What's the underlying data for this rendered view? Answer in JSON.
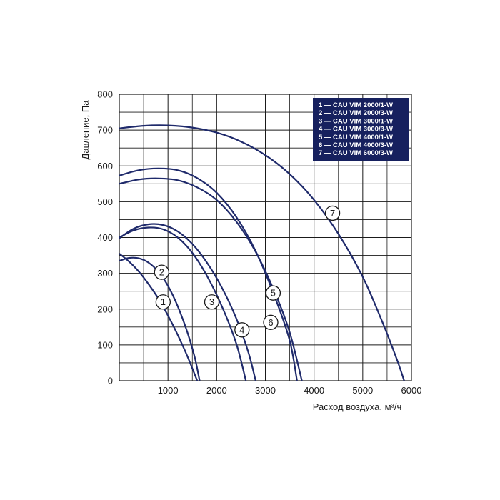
{
  "chart_data": {
    "type": "line",
    "xlabel": "Расход воздуха, м³/ч",
    "ylabel": "Давление, Па",
    "xlim": [
      0,
      6000
    ],
    "ylim": [
      0,
      800
    ],
    "x_ticks": [
      "1000",
      "2000",
      "3000",
      "4000",
      "5000",
      "6000"
    ],
    "y_ticks": [
      "0",
      "100",
      "200",
      "300",
      "400",
      "500",
      "600",
      "700",
      "800"
    ],
    "grid": true,
    "legend_position": "top-right",
    "line_color": "#1f2a6b",
    "legend_bg": "#16205e",
    "legend": [
      "1 — CAU  VIM 2000/1-W",
      "2 — CAU  VIM 2000/3-W",
      "3 — CAU  VIM 3000/1-W",
      "4 — CAU  VIM 3000/3-W",
      "5 — CAU  VIM 4000/1-W",
      "6 — CAU  VIM 4000/3-W",
      "7 — CAU  VIM 6000/3-W"
    ],
    "series": [
      {
        "label": "1",
        "marker": [
          900,
          220
        ],
        "points": [
          [
            0,
            355
          ],
          [
            200,
            333
          ],
          [
            400,
            305
          ],
          [
            600,
            270
          ],
          [
            800,
            230
          ],
          [
            1000,
            182
          ],
          [
            1200,
            128
          ],
          [
            1400,
            68
          ],
          [
            1600,
            0
          ]
        ]
      },
      {
        "label": "2",
        "marker": [
          870,
          303
        ],
        "points": [
          [
            0,
            335
          ],
          [
            200,
            343
          ],
          [
            400,
            342
          ],
          [
            600,
            330
          ],
          [
            800,
            305
          ],
          [
            1000,
            265
          ],
          [
            1200,
            208
          ],
          [
            1400,
            135
          ],
          [
            1550,
            65
          ],
          [
            1650,
            0
          ]
        ]
      },
      {
        "label": "3",
        "marker": [
          1900,
          220
        ],
        "points": [
          [
            0,
            400
          ],
          [
            300,
            420
          ],
          [
            600,
            428
          ],
          [
            900,
            423
          ],
          [
            1200,
            400
          ],
          [
            1500,
            357
          ],
          [
            1800,
            293
          ],
          [
            2100,
            210
          ],
          [
            2400,
            105
          ],
          [
            2600,
            0
          ]
        ]
      },
      {
        "label": "4",
        "marker": [
          2520,
          142
        ],
        "points": [
          [
            0,
            398
          ],
          [
            300,
            425
          ],
          [
            600,
            437
          ],
          [
            900,
            435
          ],
          [
            1200,
            417
          ],
          [
            1500,
            382
          ],
          [
            1800,
            330
          ],
          [
            2100,
            262
          ],
          [
            2400,
            175
          ],
          [
            2650,
            80
          ],
          [
            2800,
            0
          ]
        ]
      },
      {
        "label": "5",
        "marker": [
          3160,
          245
        ],
        "points": [
          [
            0,
            550
          ],
          [
            400,
            562
          ],
          [
            800,
            565
          ],
          [
            1200,
            560
          ],
          [
            1600,
            540
          ],
          [
            2000,
            505
          ],
          [
            2400,
            445
          ],
          [
            2800,
            360
          ],
          [
            3200,
            245
          ],
          [
            3500,
            135
          ],
          [
            3750,
            0
          ]
        ]
      },
      {
        "label": "6",
        "marker": [
          3110,
          163
        ],
        "points": [
          [
            0,
            573
          ],
          [
            400,
            588
          ],
          [
            800,
            593
          ],
          [
            1200,
            588
          ],
          [
            1600,
            566
          ],
          [
            2000,
            525
          ],
          [
            2400,
            458
          ],
          [
            2800,
            362
          ],
          [
            3200,
            232
          ],
          [
            3500,
            112
          ],
          [
            3650,
            0
          ]
        ]
      },
      {
        "label": "7",
        "marker": [
          4380,
          468
        ],
        "points": [
          [
            0,
            705
          ],
          [
            500,
            712
          ],
          [
            1000,
            713
          ],
          [
            1500,
            707
          ],
          [
            2000,
            693
          ],
          [
            2500,
            668
          ],
          [
            3000,
            630
          ],
          [
            3500,
            577
          ],
          [
            4000,
            505
          ],
          [
            4500,
            410
          ],
          [
            5000,
            290
          ],
          [
            5400,
            165
          ],
          [
            5700,
            60
          ],
          [
            5850,
            0
          ]
        ]
      }
    ]
  }
}
